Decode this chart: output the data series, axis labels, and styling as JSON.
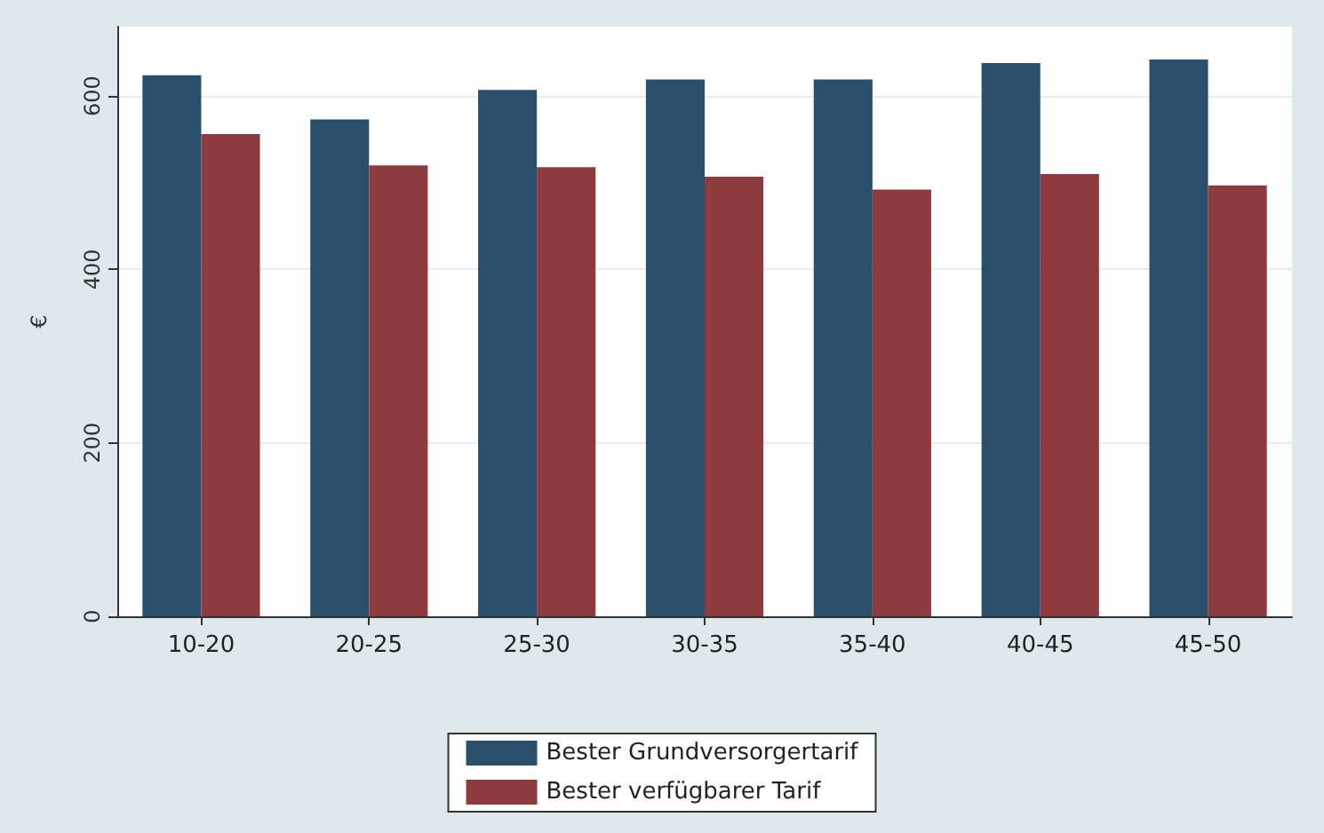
{
  "chart_data": {
    "type": "bar",
    "ylabel": "€",
    "categories": [
      "10-20",
      "20-25",
      "25-30",
      "30-35",
      "35-40",
      "40-45",
      "45-50"
    ],
    "series": [
      {
        "name": "Bester Grundversorgertarif",
        "color": "#2b4e6b",
        "values": [
          624,
          573,
          607,
          619,
          619,
          638,
          642
        ]
      },
      {
        "name": "Bester verfügbarer Tarif",
        "color": "#8e3b3f",
        "values": [
          556,
          520,
          518,
          507,
          492,
          510,
          497
        ]
      }
    ],
    "ylim": [
      0,
      680
    ],
    "yticks": [
      0,
      200,
      400,
      600
    ],
    "grid": "y",
    "legend": "bottom"
  }
}
